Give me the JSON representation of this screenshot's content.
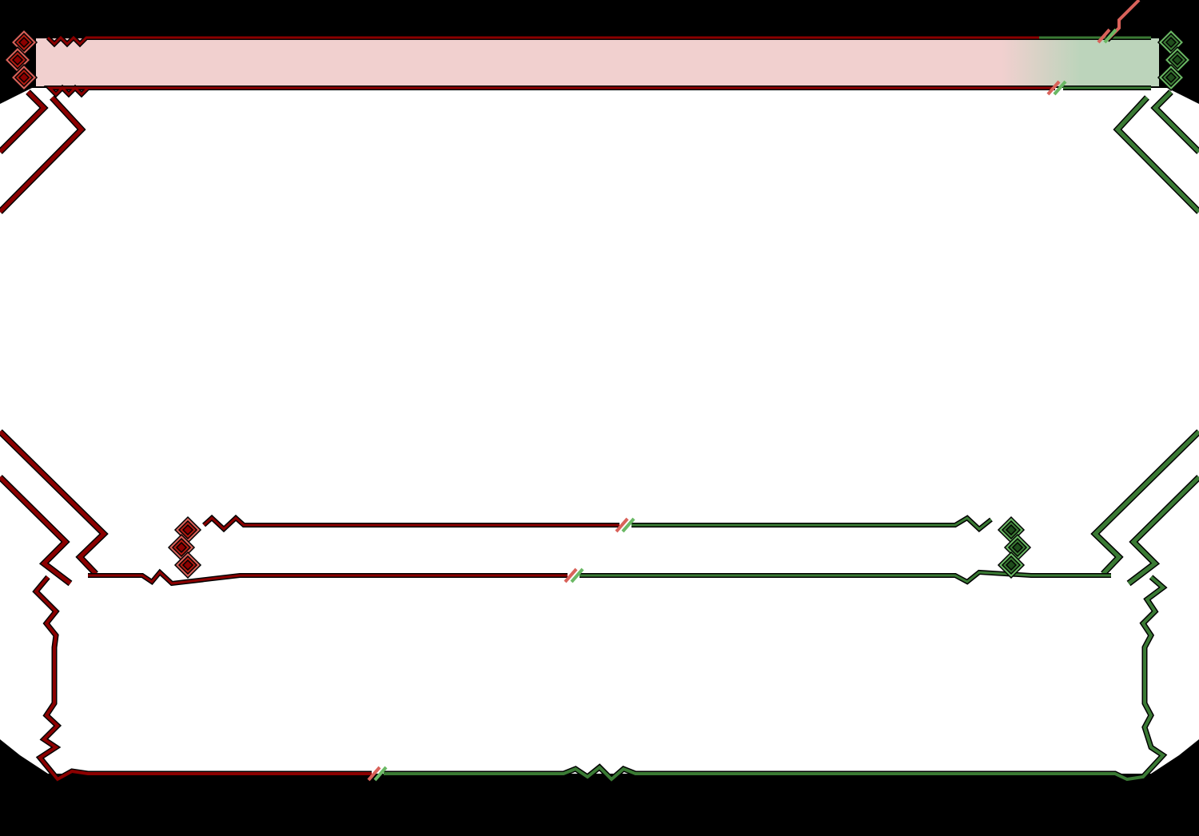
{
  "frame": {
    "colors": {
      "background": "#000000",
      "panel": "#ffffff",
      "title_bar_left": "#f1d0cf",
      "title_bar_right": "#bcd4bb",
      "red_line": "#8b0000",
      "red_light": "#d9625a",
      "red_mid": "#b01a10",
      "green_line": "#3a7a34",
      "green_light": "#6ab864",
      "outline": "#000000"
    },
    "icons": [
      "diamond-ornament-icon",
      "split-marker-icon"
    ]
  }
}
